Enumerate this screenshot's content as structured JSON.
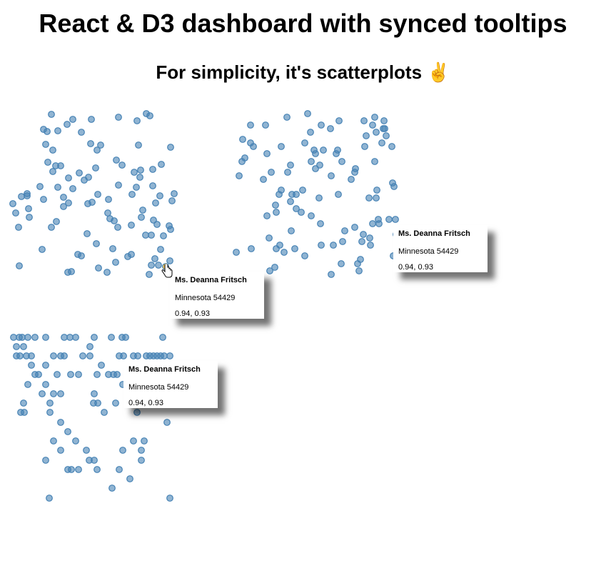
{
  "header": {
    "title": "React & D3 dashboard with synced tooltips",
    "subtitle": "For simplicity, it's scatterplots ✌️"
  },
  "tooltip": {
    "name": "Ms. Deanna Fritsch",
    "place": "Minnesota 54429",
    "values": "0.94, 0.93"
  },
  "colors": {
    "point": "#4682b4",
    "highlight": "#f2c45a"
  },
  "chart_data": [
    {
      "type": "scatter",
      "highlight": [
        0.928,
        0.892
      ],
      "points": [
        [
          0.288,
          0.04
        ],
        [
          0.408,
          0.068
        ],
        [
          0.376,
          0.096
        ],
        [
          0.512,
          0.068
        ],
        [
          0.664,
          0.056
        ],
        [
          0.82,
          0.036
        ],
        [
          0.84,
          0.048
        ],
        [
          0.768,
          0.076
        ],
        [
          0.244,
          0.124
        ],
        [
          0.264,
          0.136
        ],
        [
          0.324,
          0.132
        ],
        [
          0.456,
          0.14
        ],
        [
          0.256,
          0.208
        ],
        [
          0.296,
          0.24
        ],
        [
          0.508,
          0.204
        ],
        [
          0.564,
          0.212
        ],
        [
          0.544,
          0.24
        ],
        [
          0.776,
          0.212
        ],
        [
          0.956,
          0.224
        ],
        [
          0.268,
          0.308
        ],
        [
          0.312,
          0.328
        ],
        [
          0.34,
          0.328
        ],
        [
          0.296,
          0.36
        ],
        [
          0.536,
          0.34
        ],
        [
          0.652,
          0.296
        ],
        [
          0.684,
          0.324
        ],
        [
          0.752,
          0.364
        ],
        [
          0.788,
          0.352
        ],
        [
          0.784,
          0.392
        ],
        [
          0.856,
          0.348
        ],
        [
          0.904,
          0.32
        ],
        [
          0.384,
          0.396
        ],
        [
          0.444,
          0.368
        ],
        [
          0.496,
          0.392
        ],
        [
          0.472,
          0.408
        ],
        [
          0.224,
          0.444
        ],
        [
          0.324,
          0.448
        ],
        [
          0.408,
          0.456
        ],
        [
          0.664,
          0.436
        ],
        [
          0.764,
          0.448
        ],
        [
          0.856,
          0.44
        ],
        [
          0.152,
          0.484
        ],
        [
          0.12,
          0.5
        ],
        [
          0.152,
          0.496
        ],
        [
          0.244,
          0.516
        ],
        [
          0.356,
          0.504
        ],
        [
          0.548,
          0.488
        ],
        [
          0.608,
          0.516
        ],
        [
          0.74,
          0.488
        ],
        [
          0.896,
          0.496
        ],
        [
          0.976,
          0.484
        ],
        [
          0.964,
          0.524
        ],
        [
          0.072,
          0.54
        ],
        [
          0.16,
          0.568
        ],
        [
          0.088,
          0.592
        ],
        [
          0.164,
          0.616
        ],
        [
          0.356,
          0.556
        ],
        [
          0.384,
          0.536
        ],
        [
          0.492,
          0.54
        ],
        [
          0.516,
          0.532
        ],
        [
          0.872,
          0.536
        ],
        [
          0.8,
          0.576
        ],
        [
          0.604,
          0.592
        ],
        [
          0.616,
          0.624
        ],
        [
          0.64,
          0.636
        ],
        [
          0.792,
          0.616
        ],
        [
          0.86,
          0.632
        ],
        [
          0.88,
          0.656
        ],
        [
          0.948,
          0.664
        ],
        [
          0.956,
          0.684
        ],
        [
          0.104,
          0.672
        ],
        [
          0.288,
          0.672
        ],
        [
          0.316,
          0.64
        ],
        [
          0.66,
          0.672
        ],
        [
          0.736,
          0.66
        ],
        [
          0.488,
          0.708
        ],
        [
          0.816,
          0.716
        ],
        [
          0.848,
          0.716
        ],
        [
          0.916,
          0.72
        ],
        [
          0.54,
          0.764
        ],
        [
          0.236,
          0.796
        ],
        [
          0.632,
          0.792
        ],
        [
          0.9,
          0.796
        ],
        [
          0.436,
          0.824
        ],
        [
          0.456,
          0.832
        ],
        [
          0.716,
          0.836
        ],
        [
          0.736,
          0.824
        ],
        [
          0.868,
          0.848
        ],
        [
          0.952,
          0.86
        ],
        [
          0.648,
          0.868
        ],
        [
          0.848,
          0.884
        ],
        [
          0.888,
          0.884
        ],
        [
          0.108,
          0.888
        ],
        [
          0.552,
          0.9
        ],
        [
          0.38,
          0.924
        ],
        [
          0.4,
          0.92
        ],
        [
          0.6,
          0.924
        ],
        [
          0.836,
          0.936
        ]
      ]
    },
    {
      "type": "scatter",
      "points": [
        [
          0.444,
          0.036
        ],
        [
          0.328,
          0.056
        ],
        [
          0.124,
          0.1
        ],
        [
          0.208,
          0.1
        ],
        [
          0.52,
          0.1
        ],
        [
          0.572,
          0.12
        ],
        [
          0.62,
          0.076
        ],
        [
          0.76,
          0.076
        ],
        [
          0.82,
          0.056
        ],
        [
          0.872,
          0.076
        ],
        [
          0.808,
          0.1
        ],
        [
          0.868,
          0.12
        ],
        [
          0.876,
          0.12
        ],
        [
          0.828,
          0.14
        ],
        [
          0.772,
          0.16
        ],
        [
          0.884,
          0.16
        ],
        [
          0.86,
          0.2
        ],
        [
          0.916,
          0.22
        ],
        [
          0.764,
          0.22
        ],
        [
          0.46,
          0.14
        ],
        [
          0.08,
          0.18
        ],
        [
          0.124,
          0.2
        ],
        [
          0.14,
          0.22
        ],
        [
          0.296,
          0.22
        ],
        [
          0.428,
          0.2
        ],
        [
          0.216,
          0.26
        ],
        [
          0.48,
          0.24
        ],
        [
          0.488,
          0.26
        ],
        [
          0.532,
          0.24
        ],
        [
          0.612,
          0.24
        ],
        [
          0.604,
          0.26
        ],
        [
          0.092,
          0.284
        ],
        [
          0.076,
          0.304
        ],
        [
          0.464,
          0.304
        ],
        [
          0.636,
          0.304
        ],
        [
          0.82,
          0.304
        ],
        [
          0.348,
          0.324
        ],
        [
          0.512,
          0.324
        ],
        [
          0.488,
          0.344
        ],
        [
          0.712,
          0.344
        ],
        [
          0.708,
          0.364
        ],
        [
          0.06,
          0.384
        ],
        [
          0.24,
          0.364
        ],
        [
          0.332,
          0.364
        ],
        [
          0.196,
          0.404
        ],
        [
          0.576,
          0.384
        ],
        [
          0.688,
          0.404
        ],
        [
          0.92,
          0.424
        ],
        [
          0.928,
          0.444
        ],
        [
          0.296,
          0.464
        ],
        [
          0.284,
          0.488
        ],
        [
          0.356,
          0.488
        ],
        [
          0.38,
          0.488
        ],
        [
          0.416,
          0.464
        ],
        [
          0.616,
          0.488
        ],
        [
          0.832,
          0.464
        ],
        [
          0.508,
          0.508
        ],
        [
          0.788,
          0.508
        ],
        [
          0.828,
          0.508
        ],
        [
          0.348,
          0.528
        ],
        [
          0.264,
          0.548
        ],
        [
          0.268,
          0.588
        ],
        [
          0.38,
          0.568
        ],
        [
          0.408,
          0.588
        ],
        [
          0.216,
          0.608
        ],
        [
          0.464,
          0.608
        ],
        [
          0.516,
          0.652
        ],
        [
          0.84,
          0.628
        ],
        [
          0.808,
          0.652
        ],
        [
          0.844,
          0.652
        ],
        [
          0.9,
          0.628
        ],
        [
          0.936,
          0.628
        ],
        [
          0.352,
          0.692
        ],
        [
          0.652,
          0.692
        ],
        [
          0.708,
          0.672
        ],
        [
          0.756,
          0.712
        ],
        [
          0.792,
          0.732
        ],
        [
          0.94,
          0.712
        ],
        [
          0.228,
          0.732
        ],
        [
          0.288,
          0.772
        ],
        [
          0.268,
          0.792
        ],
        [
          0.312,
          0.812
        ],
        [
          0.372,
          0.792
        ],
        [
          0.52,
          0.772
        ],
        [
          0.588,
          0.772
        ],
        [
          0.64,
          0.752
        ],
        [
          0.748,
          0.752
        ],
        [
          0.796,
          0.772
        ],
        [
          0.044,
          0.812
        ],
        [
          0.128,
          0.792
        ],
        [
          0.428,
          0.832
        ],
        [
          0.924,
          0.832
        ],
        [
          0.74,
          0.852
        ],
        [
          0.724,
          0.876
        ],
        [
          0.632,
          0.876
        ],
        [
          0.26,
          0.896
        ],
        [
          0.232,
          0.916
        ],
        [
          0.732,
          0.916
        ],
        [
          0.576,
          0.936
        ]
      ]
    },
    {
      "type": "scatter",
      "rows": [
        {
          "y": 0.048,
          "x": [
            0.076,
            0.108,
            0.124,
            0.156,
            0.196,
            0.256,
            0.36,
            0.392,
            0.424,
            0.528,
            0.624,
            0.684,
            0.704,
            0.912
          ]
        },
        {
          "y": 0.1,
          "x": [
            0.092,
            0.132,
            0.504
          ]
        },
        {
          "y": 0.152,
          "x": [
            0.092,
            0.112,
            0.148,
            0.176,
            0.3,
            0.34,
            0.36,
            0.464,
            0.504,
            0.668,
            0.692,
            0.748,
            0.772,
            0.82,
            0.84,
            0.86,
            0.88,
            0.9,
            0.92,
            0.952
          ]
        },
        {
          "y": 0.204,
          "x": [
            0.176,
            0.256,
            0.568
          ]
        },
        {
          "y": 0.256,
          "x": [
            0.196,
            0.216,
            0.32,
            0.396,
            0.44,
            0.544,
            0.608,
            0.636,
            0.656
          ]
        },
        {
          "y": 0.312,
          "x": [
            0.156,
            0.256,
            0.688
          ]
        },
        {
          "y": 0.364,
          "x": [
            0.236,
            0.3,
            0.34,
            0.528
          ]
        },
        {
          "y": 0.416,
          "x": [
            0.132,
            0.28,
            0.524,
            0.548,
            0.648,
            0.728
          ]
        },
        {
          "y": 0.468,
          "x": [
            0.116,
            0.136,
            0.28,
            0.584,
            0.768
          ]
        },
        {
          "y": 0.524,
          "x": [
            0.34,
            0.936
          ]
        },
        {
          "y": 0.576,
          "x": [
            0.38
          ]
        },
        {
          "y": 0.628,
          "x": [
            0.3,
            0.424,
            0.748,
            0.808
          ]
        },
        {
          "y": 0.68,
          "x": [
            0.34,
            0.484,
            0.688,
            0.792
          ]
        },
        {
          "y": 0.736,
          "x": [
            0.256,
            0.5,
            0.528,
            0.792
          ]
        },
        {
          "y": 0.788,
          "x": [
            0.38,
            0.4,
            0.44,
            0.544,
            0.668
          ]
        },
        {
          "y": 0.84,
          "x": [
            0.728
          ]
        },
        {
          "y": 0.892,
          "x": [
            0.628
          ]
        },
        {
          "y": 0.948,
          "x": [
            0.276,
            0.952
          ]
        }
      ]
    }
  ]
}
